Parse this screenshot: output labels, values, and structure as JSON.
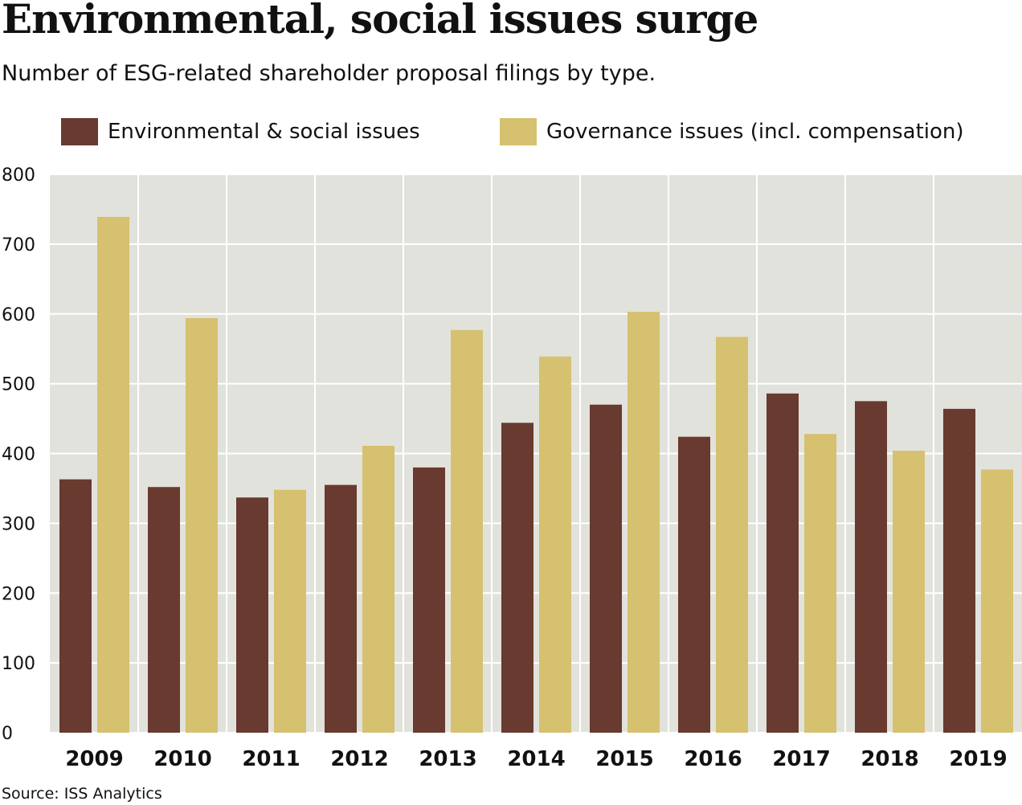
{
  "chart_data": {
    "type": "bar",
    "title": "Environmental, social issues surge",
    "subtitle": "Number of ESG-related shareholder proposal filings by type.",
    "source": "Source: ISS Analytics",
    "categories": [
      "2009",
      "2010",
      "2011",
      "2012",
      "2013",
      "2014",
      "2015",
      "2016",
      "2017",
      "2018",
      "2019"
    ],
    "series": [
      {
        "name": "Environmental & social issues",
        "color": "#693A2F",
        "values": [
          363,
          352,
          337,
          355,
          380,
          444,
          470,
          424,
          486,
          475,
          464
        ]
      },
      {
        "name": "Governance issues (incl. compensation)",
        "color": "#D5C16F",
        "values": [
          739,
          594,
          348,
          411,
          577,
          539,
          603,
          567,
          428,
          404,
          377
        ]
      }
    ],
    "ylim": [
      0,
      800
    ],
    "yticks": [
      0,
      100,
      200,
      300,
      400,
      500,
      600,
      700,
      800
    ],
    "xlabel": "",
    "ylabel": "",
    "grid": true,
    "legend": "top",
    "colors": {
      "plot_background": "#E2E2DC",
      "gridline": "#FFFFFF"
    }
  }
}
